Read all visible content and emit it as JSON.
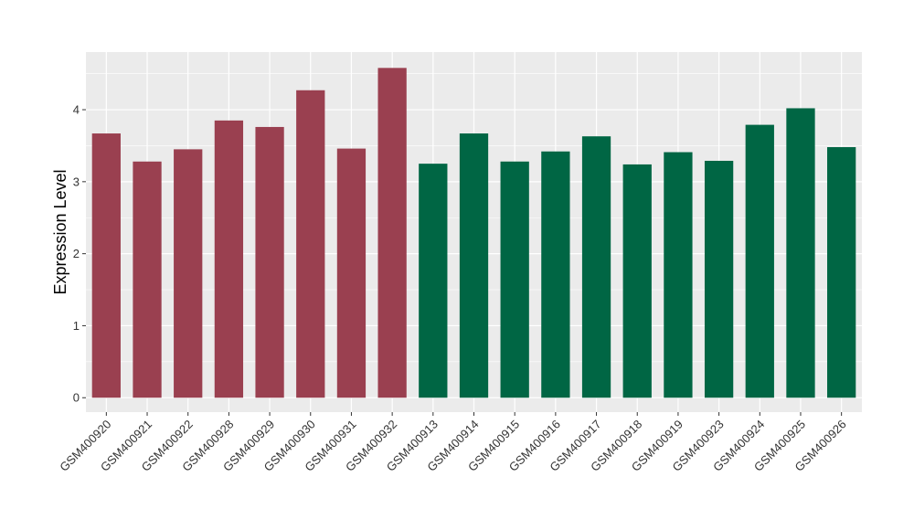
{
  "chart_data": {
    "type": "bar",
    "title": "",
    "xlabel": "",
    "ylabel": "Expression Level",
    "ylim": [
      -0.2,
      4.8
    ],
    "yticks": [
      0,
      1,
      2,
      3,
      4
    ],
    "grid": true,
    "categories": [
      "GSM400920",
      "GSM400921",
      "GSM400922",
      "GSM400928",
      "GSM400929",
      "GSM400930",
      "GSM400931",
      "GSM400932",
      "GSM400913",
      "GSM400914",
      "GSM400915",
      "GSM400916",
      "GSM400917",
      "GSM400918",
      "GSM400919",
      "GSM400923",
      "GSM400924",
      "GSM400925",
      "GSM400926"
    ],
    "values": [
      3.67,
      3.28,
      3.45,
      3.85,
      3.76,
      4.27,
      3.46,
      4.58,
      3.25,
      3.67,
      3.28,
      3.42,
      3.63,
      3.24,
      3.41,
      3.29,
      3.79,
      4.02,
      3.48
    ],
    "group_colors": [
      "#9a4050",
      "#9a4050",
      "#9a4050",
      "#9a4050",
      "#9a4050",
      "#9a4050",
      "#9a4050",
      "#9a4050",
      "#006644",
      "#006644",
      "#006644",
      "#006644",
      "#006644",
      "#006644",
      "#006644",
      "#006644",
      "#006644",
      "#006644",
      "#006644"
    ],
    "colors": {
      "group_a": "#9a4050",
      "group_b": "#006644",
      "panel": "#ebebeb",
      "grid": "#ffffff"
    }
  }
}
